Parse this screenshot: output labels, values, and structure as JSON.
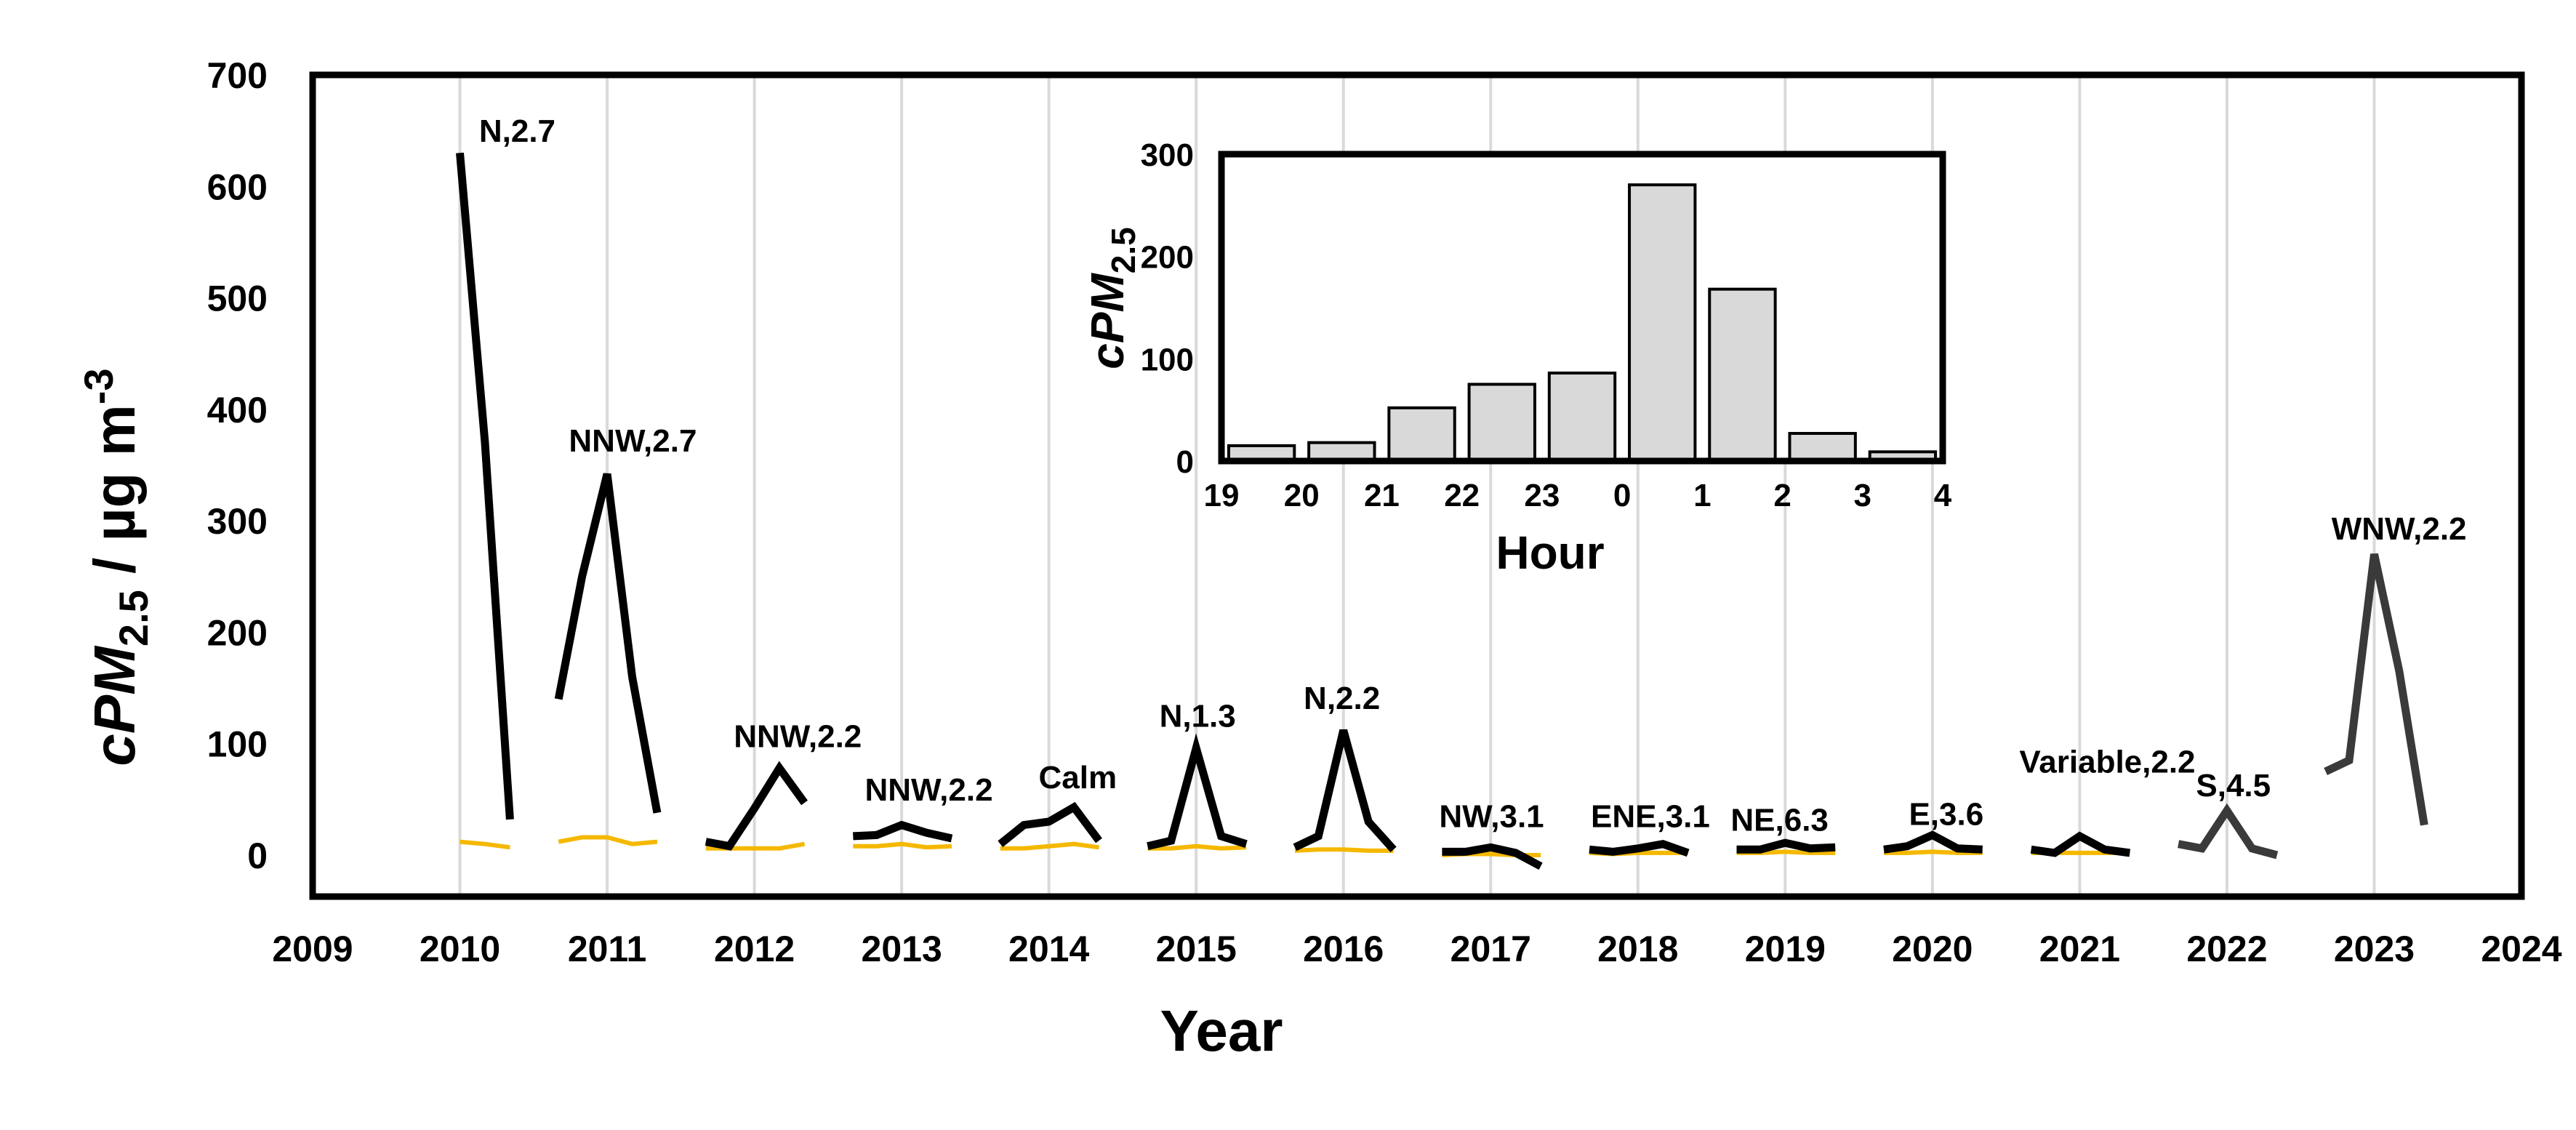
{
  "chart_data": [
    {
      "type": "line",
      "xlabel": "Year",
      "ylabel": "cPM2.5 / µg m-3",
      "ylabel_parts": {
        "main": "cPM",
        "sub": "2.5",
        "unit": " / µg  m",
        "sup": "-3"
      },
      "xlim": [
        2009,
        2024
      ],
      "ylim": [
        0,
        700
      ],
      "x_ticks": [
        "2009",
        "2010",
        "2011",
        "2012",
        "2013",
        "2014",
        "2015",
        "2016",
        "2017",
        "2018",
        "2019",
        "2020",
        "2021",
        "2022",
        "2023",
        "2024"
      ],
      "y_ticks": [
        "0",
        "100",
        "200",
        "300",
        "400",
        "500",
        "600",
        "700"
      ],
      "grid": "vertical",
      "legend": "none",
      "colors": {
        "main_line": "#000000",
        "late_line": "#3a3a3a",
        "baseline": "#f5b800",
        "grid": "#d9d9d9"
      },
      "series": [
        {
          "segments": [
            {
              "x": [
                2010.0,
                2010.17,
                2010.34
              ],
              "y": [
                630,
                370,
                32
              ]
            },
            {
              "x": [
                2010.67,
                2010.83,
                2011.0,
                2011.17,
                2011.34
              ],
              "y": [
                140,
                250,
                342,
                160,
                38
              ]
            },
            {
              "x": [
                2011.67,
                2011.83,
                2012.0,
                2012.17,
                2012.34
              ],
              "y": [
                12,
                8,
                42,
                78,
                47
              ]
            },
            {
              "x": [
                2012.67,
                2012.83,
                2013.0,
                2013.17,
                2013.34
              ],
              "y": [
                17,
                18,
                27,
                20,
                15
              ]
            },
            {
              "x": [
                2013.67,
                2013.83,
                2014.0,
                2014.17,
                2014.34
              ],
              "y": [
                10,
                27,
                30,
                43,
                13
              ]
            },
            {
              "x": [
                2014.67,
                2014.83,
                2015.0,
                2015.17,
                2015.34
              ],
              "y": [
                8,
                13,
                96,
                17,
                10
              ]
            },
            {
              "x": [
                2015.67,
                2015.83,
                2016.0,
                2016.17,
                2016.34
              ],
              "y": [
                7,
                17,
                112,
                30,
                5
              ]
            },
            {
              "x": [
                2016.67,
                2016.83,
                2017.0,
                2017.17,
                2017.34
              ],
              "y": [
                3,
                3,
                7,
                2,
                -10
              ]
            },
            {
              "x": [
                2017.67,
                2017.83,
                2018.0,
                2018.17,
                2018.34
              ],
              "y": [
                5,
                3,
                6,
                10,
                2
              ]
            },
            {
              "x": [
                2018.67,
                2018.83,
                2019.0,
                2019.17,
                2019.34
              ],
              "y": [
                5,
                5,
                11,
                6,
                7
              ]
            },
            {
              "x": [
                2019.67,
                2019.83,
                2020.0,
                2020.17,
                2020.34
              ],
              "y": [
                5,
                8,
                18,
                6,
                5
              ]
            },
            {
              "x": [
                2020.67,
                2020.83,
                2021.0,
                2021.17,
                2021.34
              ],
              "y": [
                5,
                2,
                17,
                5,
                2
              ]
            }
          ]
        },
        {
          "segments": [
            {
              "x": [
                2021.67,
                2021.83,
                2022.0,
                2022.17,
                2022.34
              ],
              "y": [
                10,
                6,
                40,
                6,
                0
              ]
            },
            {
              "x": [
                2022.67,
                2022.83,
                2023.0,
                2023.17,
                2023.34
              ],
              "y": [
                75,
                85,
                270,
                165,
                27
              ]
            }
          ]
        },
        {
          "segments": [
            {
              "x": [
                2010.0,
                2010.17,
                2010.34
              ],
              "y": [
                12,
                10,
                7
              ]
            },
            {
              "x": [
                2010.67,
                2010.83,
                2011.0,
                2011.17,
                2011.34
              ],
              "y": [
                12,
                16,
                16,
                10,
                12
              ]
            },
            {
              "x": [
                2011.67,
                2011.83,
                2012.0,
                2012.17,
                2012.34
              ],
              "y": [
                6,
                6,
                6,
                6,
                10
              ]
            },
            {
              "x": [
                2012.67,
                2012.83,
                2013.0,
                2013.17,
                2013.34
              ],
              "y": [
                8,
                8,
                10,
                7,
                8
              ]
            },
            {
              "x": [
                2013.67,
                2013.83,
                2014.0,
                2014.17,
                2014.34
              ],
              "y": [
                6,
                6,
                8,
                10,
                7
              ]
            },
            {
              "x": [
                2014.67,
                2014.83,
                2015.0,
                2015.17,
                2015.34
              ],
              "y": [
                6,
                6,
                8,
                6,
                7
              ]
            },
            {
              "x": [
                2015.67,
                2015.83,
                2016.0,
                2016.17,
                2016.34
              ],
              "y": [
                4,
                5,
                5,
                4,
                4
              ]
            },
            {
              "x": [
                2016.67,
                2016.83,
                2017.0,
                2017.17,
                2017.34
              ],
              "y": [
                0,
                1,
                1,
                0,
                0
              ]
            },
            {
              "x": [
                2017.67,
                2017.83,
                2018.0,
                2018.17,
                2018.34
              ],
              "y": [
                2,
                1,
                2,
                2,
                2
              ]
            },
            {
              "x": [
                2018.67,
                2018.83,
                2019.0,
                2019.17,
                2019.34
              ],
              "y": [
                2,
                2,
                3,
                2,
                2
              ]
            },
            {
              "x": [
                2019.67,
                2019.83,
                2020.0,
                2020.17,
                2020.34
              ],
              "y": [
                2,
                2,
                3,
                2,
                2
              ]
            },
            {
              "x": [
                2020.67,
                2020.83,
                2021.0,
                2021.17,
                2021.34
              ],
              "y": [
                2,
                2,
                2,
                2,
                2
              ]
            }
          ]
        }
      ],
      "annotations": [
        {
          "text": "N,2.7",
          "x": 2010.13,
          "y": 640
        },
        {
          "text": "NNW,2.7",
          "x": 2010.74,
          "y": 362
        },
        {
          "text": "NNW,2.2",
          "x": 2011.86,
          "y": 97
        },
        {
          "text": "NNW,2.2",
          "x": 2012.75,
          "y": 49
        },
        {
          "text": "Calm",
          "x": 2013.93,
          "y": 60
        },
        {
          "text": "N,1.3",
          "x": 2014.75,
          "y": 115
        },
        {
          "text": "N,2.2",
          "x": 2015.73,
          "y": 131
        },
        {
          "text": "NW,3.1",
          "x": 2016.65,
          "y": 25
        },
        {
          "text": "ENE,3.1",
          "x": 2017.68,
          "y": 25
        },
        {
          "text": "NE,6.3",
          "x": 2018.63,
          "y": 22
        },
        {
          "text": "E,3.6",
          "x": 2019.84,
          "y": 27
        },
        {
          "text": "Variable,2.2",
          "x": 2020.59,
          "y": 74
        },
        {
          "text": "S,4.5",
          "x": 2021.79,
          "y": 53
        },
        {
          "text": "WNW,2.2",
          "x": 2022.71,
          "y": 283
        }
      ]
    },
    {
      "type": "bar",
      "xlabel": "Hour",
      "ylabel": "cPM2.5",
      "ylabel_parts": {
        "main": "cPM",
        "sub": "2.5"
      },
      "x_ticks": [
        "19",
        "20",
        "21",
        "22",
        "23",
        "0",
        "1",
        "2",
        "3",
        "4"
      ],
      "categories": [
        "19-20",
        "20-21",
        "21-22",
        "22-23",
        "23-0",
        "0-1",
        "1-2",
        "2-3",
        "3-4"
      ],
      "values": [
        15,
        18,
        52,
        75,
        86,
        270,
        168,
        27,
        9
      ],
      "ylim": [
        0,
        300
      ],
      "y_ticks": [
        "0",
        "100",
        "200",
        "300"
      ],
      "bar_color": "#d9d9d9",
      "grid": "none"
    }
  ]
}
